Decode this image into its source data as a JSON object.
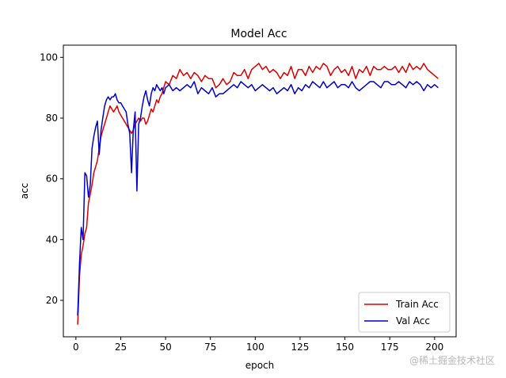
{
  "chart_data": {
    "type": "line",
    "title": "Model Acc",
    "xlabel": "epoch",
    "ylabel": "acc",
    "xlim": [
      -7,
      212
    ],
    "ylim": [
      8,
      104
    ],
    "xticks": [
      0,
      25,
      50,
      75,
      100,
      125,
      150,
      175,
      200
    ],
    "yticks": [
      20,
      40,
      60,
      80,
      100
    ],
    "grid": false,
    "legend_position": "lower-right",
    "series": [
      {
        "name": "Train Acc",
        "color": "#dd0000",
        "x": [
          1,
          2,
          3,
          4,
          5,
          6,
          7,
          8,
          9,
          10,
          11,
          12,
          13,
          14,
          15,
          16,
          17,
          18,
          19,
          20,
          21,
          22,
          23,
          24,
          25,
          26,
          27,
          28,
          29,
          30,
          31,
          32,
          33,
          34,
          35,
          36,
          37,
          38,
          39,
          40,
          41,
          42,
          43,
          44,
          45,
          46,
          47,
          48,
          49,
          50,
          52,
          54,
          56,
          58,
          60,
          62,
          64,
          66,
          68,
          70,
          72,
          74,
          76,
          78,
          80,
          82,
          84,
          86,
          88,
          90,
          92,
          94,
          96,
          98,
          100,
          102,
          104,
          106,
          108,
          110,
          112,
          114,
          116,
          118,
          120,
          122,
          124,
          126,
          128,
          130,
          132,
          134,
          136,
          138,
          140,
          142,
          144,
          146,
          148,
          150,
          152,
          154,
          156,
          158,
          160,
          162,
          164,
          166,
          168,
          170,
          172,
          174,
          176,
          178,
          180,
          182,
          184,
          186,
          188,
          190,
          192,
          194,
          196,
          198,
          200,
          202
        ],
        "y": [
          12,
          28,
          35,
          38,
          42,
          44,
          52,
          55,
          58,
          62,
          64,
          66,
          70,
          74,
          76,
          78,
          80,
          82,
          84,
          83,
          82,
          83,
          84,
          82,
          81,
          80,
          79,
          78,
          77,
          76,
          75,
          76,
          78,
          79,
          80,
          79,
          80,
          80,
          78,
          79,
          81,
          83,
          82,
          84,
          86,
          85,
          87,
          88,
          90,
          92,
          91,
          94,
          93,
          96,
          94,
          95,
          93,
          95,
          94,
          92,
          94,
          93,
          93,
          90,
          91,
          93,
          91,
          92,
          95,
          94,
          94,
          96,
          93,
          96,
          97,
          98,
          96,
          97,
          95,
          96,
          95,
          93,
          95,
          94,
          97,
          93,
          96,
          96,
          94,
          97,
          95,
          97,
          96,
          98,
          97,
          94,
          96,
          97,
          95,
          96,
          94,
          97,
          93,
          96,
          95,
          97,
          94,
          97,
          96,
          96,
          97,
          96,
          96,
          97,
          95,
          97,
          95,
          98,
          96,
          97,
          96,
          98,
          96,
          95,
          94,
          93
        ]
      },
      {
        "name": "Val Acc",
        "color": "#0000cc",
        "x": [
          1,
          2,
          3,
          4,
          5,
          6,
          7,
          8,
          9,
          10,
          11,
          12,
          13,
          14,
          15,
          16,
          17,
          18,
          19,
          20,
          21,
          22,
          23,
          24,
          25,
          26,
          27,
          28,
          29,
          30,
          31,
          32,
          33,
          34,
          35,
          36,
          37,
          38,
          39,
          40,
          41,
          42,
          43,
          44,
          45,
          46,
          47,
          48,
          49,
          50,
          52,
          54,
          56,
          58,
          60,
          62,
          64,
          66,
          68,
          70,
          72,
          74,
          76,
          78,
          80,
          82,
          84,
          86,
          88,
          90,
          92,
          94,
          96,
          98,
          100,
          102,
          104,
          106,
          108,
          110,
          112,
          114,
          116,
          118,
          120,
          122,
          124,
          126,
          128,
          130,
          132,
          134,
          136,
          138,
          140,
          142,
          144,
          146,
          148,
          150,
          152,
          154,
          156,
          158,
          160,
          162,
          164,
          166,
          168,
          170,
          172,
          174,
          176,
          178,
          180,
          182,
          184,
          186,
          188,
          190,
          192,
          194,
          196,
          198,
          200,
          202
        ],
        "y": [
          15,
          32,
          44,
          40,
          62,
          61,
          54,
          58,
          70,
          74,
          77,
          79,
          68,
          76,
          80,
          84,
          86,
          87,
          86,
          87,
          87,
          88,
          86,
          85,
          85,
          84,
          83,
          82,
          78,
          75,
          62,
          76,
          82,
          56,
          78,
          80,
          84,
          87,
          89,
          86,
          84,
          88,
          90,
          89,
          91,
          90,
          89,
          90,
          88,
          90,
          91,
          89,
          90,
          89,
          90,
          91,
          90,
          92,
          88,
          90,
          89,
          88,
          90,
          87,
          88,
          88,
          89,
          90,
          91,
          90,
          92,
          91,
          90,
          91,
          89,
          90,
          91,
          90,
          89,
          90,
          88,
          89,
          90,
          89,
          91,
          88,
          90,
          89,
          91,
          90,
          92,
          91,
          90,
          92,
          90,
          91,
          92,
          90,
          91,
          91,
          90,
          92,
          90,
          89,
          90,
          91,
          92,
          92,
          91,
          90,
          92,
          92,
          91,
          91,
          92,
          91,
          90,
          92,
          91,
          92,
          91,
          89,
          91,
          90,
          91,
          90
        ]
      }
    ]
  },
  "watermark": "@稀土掘金技术社区"
}
